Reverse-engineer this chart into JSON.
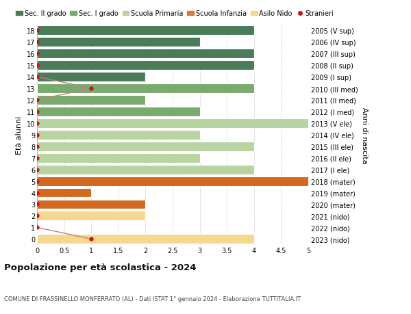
{
  "ages": [
    18,
    17,
    16,
    15,
    14,
    13,
    12,
    11,
    10,
    9,
    8,
    7,
    6,
    5,
    4,
    3,
    2,
    1,
    0
  ],
  "right_labels": [
    "2005 (V sup)",
    "2006 (IV sup)",
    "2007 (III sup)",
    "2008 (II sup)",
    "2009 (I sup)",
    "2010 (III med)",
    "2011 (II med)",
    "2012 (I med)",
    "2013 (V ele)",
    "2014 (IV ele)",
    "2015 (III ele)",
    "2016 (II ele)",
    "2017 (I ele)",
    "2018 (mater)",
    "2019 (mater)",
    "2020 (mater)",
    "2021 (nido)",
    "2022 (nido)",
    "2023 (nido)"
  ],
  "bar_values": [
    4,
    3,
    4,
    4,
    2,
    4,
    2,
    3,
    5,
    3,
    4,
    3,
    4,
    5,
    1,
    2,
    2,
    0,
    4
  ],
  "bar_colors": [
    "#4a7c59",
    "#4a7c59",
    "#4a7c59",
    "#4a7c59",
    "#4a7c59",
    "#7aab6e",
    "#7aab6e",
    "#7aab6e",
    "#b8d4a0",
    "#b8d4a0",
    "#b8d4a0",
    "#b8d4a0",
    "#b8d4a0",
    "#d2691e",
    "#d2691e",
    "#d2691e",
    "#f5d78e",
    "#f5d78e",
    "#f5d78e"
  ],
  "stranieri_x": [
    0,
    0,
    0,
    0,
    0,
    1,
    0,
    0,
    0,
    0,
    0,
    0,
    0,
    0,
    0,
    0,
    0,
    0,
    1
  ],
  "legend_labels": [
    "Sec. II grado",
    "Sec. I grado",
    "Scuola Primaria",
    "Scuola Infanzia",
    "Asilo Nido",
    "Stranieri"
  ],
  "legend_colors": [
    "#4a7c59",
    "#7aab6e",
    "#b8d4a0",
    "#e07830",
    "#f5d78e",
    "#cc1111"
  ],
  "title": "Popolazione per età scolastica - 2024",
  "subtitle": "COMUNE DI FRASSINELLO MONFERRATO (AL) - Dati ISTAT 1° gennaio 2024 - Elaborazione TUTTITALIA.IT",
  "ylabel_left": "Età alunni",
  "ylabel_right": "Anni di nascita",
  "xlim": [
    0,
    5.0
  ],
  "xticks": [
    0,
    0.5,
    1.0,
    1.5,
    2.0,
    2.5,
    3.0,
    3.5,
    4.0,
    4.5,
    5.0
  ],
  "bar_height": 0.82,
  "bg_color": "#ffffff",
  "grid_color": "#cccccc",
  "stranieri_line_color": "#c08080"
}
